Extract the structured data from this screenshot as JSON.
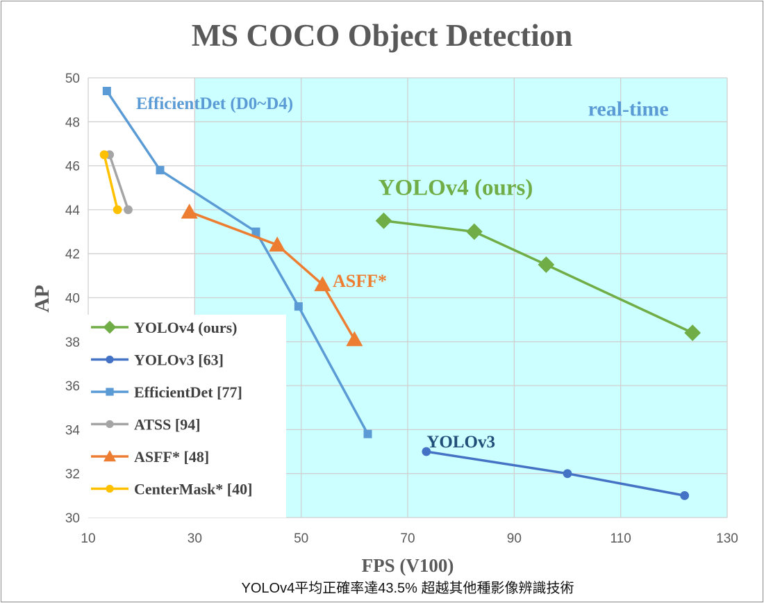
{
  "caption": "YOLOv4平均正確率達43.5% 超越其他種影像辨識技術",
  "chart_data": {
    "type": "line",
    "title": "MS COCO Object Detection",
    "xlabel": "FPS (V100)",
    "ylabel": "AP",
    "xlim": [
      10,
      130
    ],
    "ylim": [
      30,
      50
    ],
    "xticks": [
      10,
      30,
      50,
      70,
      90,
      110,
      130
    ],
    "yticks": [
      30,
      32,
      34,
      36,
      38,
      40,
      42,
      44,
      46,
      48,
      50
    ],
    "xtick_labels": [
      "10",
      "30",
      "50",
      "70",
      "90",
      "110",
      "130"
    ],
    "ytick_labels": [
      "30",
      "32",
      "34",
      "36",
      "38",
      "40",
      "42",
      "44",
      "46",
      "48",
      "50"
    ],
    "grid": true,
    "legend_position": "bottom-left",
    "realtime_region": {
      "label": "real-time",
      "x_start": 30,
      "color": "#ccffff"
    },
    "series": [
      {
        "name": "YOLOv4 (ours)",
        "color": "#70ad47",
        "marker": "diamond",
        "x": [
          65.5,
          82.5,
          96,
          123.5
        ],
        "y": [
          43.5,
          43.0,
          41.5,
          38.4
        ]
      },
      {
        "name": "YOLOv3 [63]",
        "color": "#4472c4",
        "marker": "circle",
        "x": [
          73.5,
          100,
          122
        ],
        "y": [
          33.0,
          32.0,
          31.0
        ]
      },
      {
        "name": "EfficientDet [77]",
        "color": "#5b9bd5",
        "marker": "square",
        "x": [
          13.5,
          23.5,
          41.5,
          49.5,
          62.5
        ],
        "y": [
          49.4,
          45.8,
          43.0,
          39.6,
          33.8
        ]
      },
      {
        "name": "ATSS [94]",
        "color": "#a5a5a5",
        "marker": "circle",
        "x": [
          14,
          17.5
        ],
        "y": [
          46.5,
          44.0
        ]
      },
      {
        "name": "ASFF* [48]",
        "color": "#ed7d31",
        "marker": "triangle",
        "x": [
          29,
          45.5,
          54,
          60
        ],
        "y": [
          43.9,
          42.4,
          40.6,
          38.1
        ]
      },
      {
        "name": "CenterMask* [40]",
        "color": "#ffc000",
        "marker": "circle",
        "x": [
          13,
          15.5
        ],
        "y": [
          46.5,
          44.0
        ]
      }
    ],
    "annotations": [
      {
        "text": "EfficientDet (D0~D4)",
        "color": "#5b9bd5",
        "x": 27,
        "y": 48.9
      },
      {
        "text": "real-time",
        "color": "#5b9bd5",
        "x": 119,
        "y": 48.6
      },
      {
        "text": "YOLOv4 (ours)",
        "color": "#70ad47",
        "x": 79,
        "y": 45.0
      },
      {
        "text": "ASFF*",
        "color": "#ed7d31",
        "x": 61,
        "y": 40.8
      },
      {
        "text": "YOLOv3",
        "color": "#1f4e79",
        "x": 80,
        "y": 33.5
      }
    ]
  }
}
